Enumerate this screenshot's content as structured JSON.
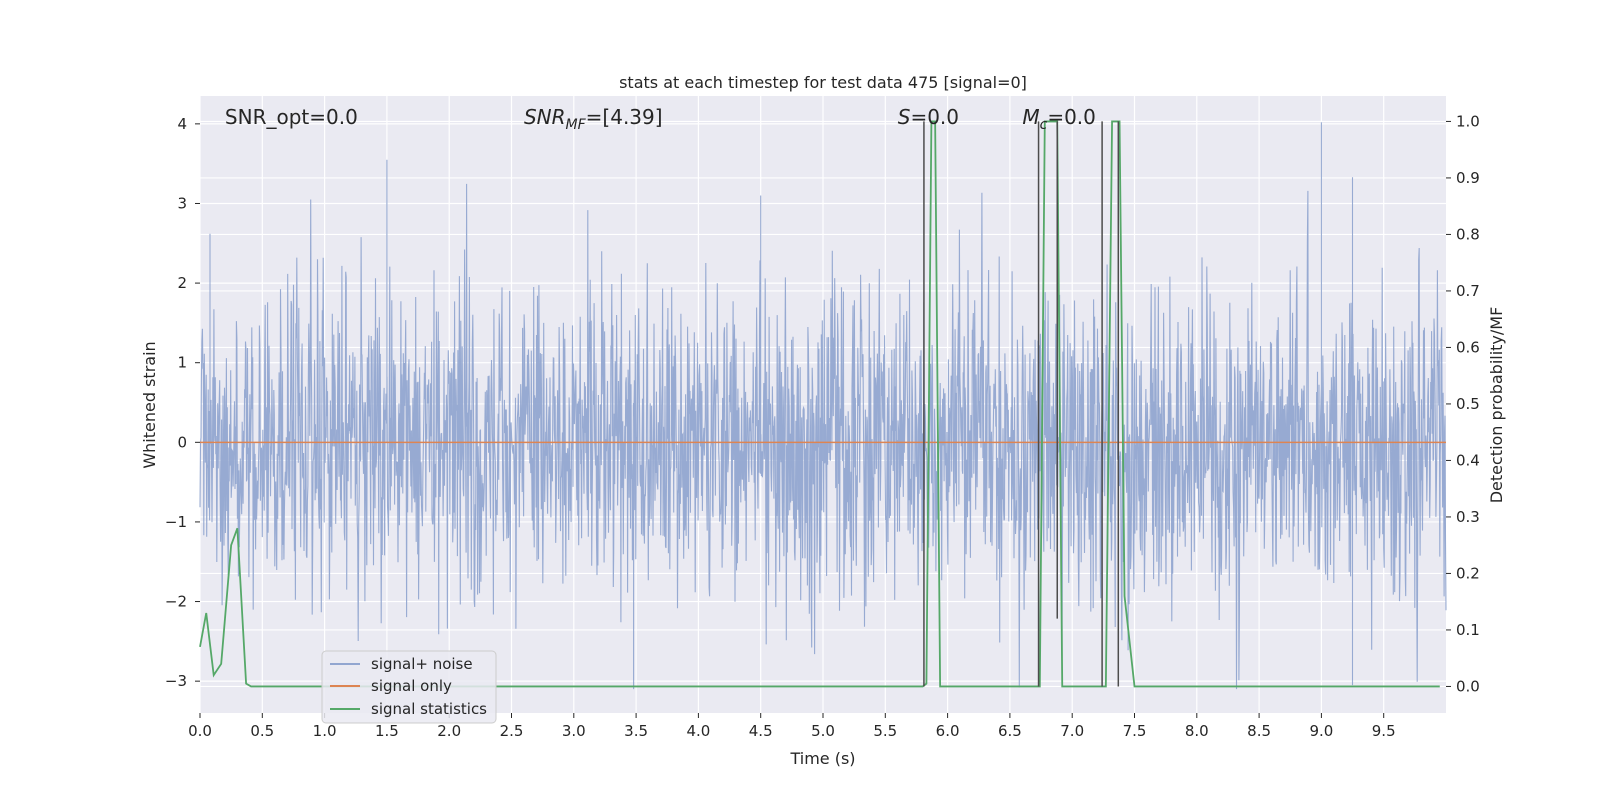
{
  "chart_data": {
    "type": "line",
    "title": "stats at each timestep for test data 475 [signal=0]",
    "xlabel": "Time (s)",
    "ylabel_left": "Whitened strain",
    "ylabel_right": "Detection probability/MF",
    "xlim": [
      0.0,
      10.0
    ],
    "ylim_left": [
      -3.4,
      4.35
    ],
    "ylim_right": [
      -0.047,
      1.045
    ],
    "xticks": [
      0.0,
      0.5,
      1.0,
      1.5,
      2.0,
      2.5,
      3.0,
      3.5,
      4.0,
      4.5,
      5.0,
      5.5,
      6.0,
      6.5,
      7.0,
      7.5,
      8.0,
      8.5,
      9.0,
      9.5
    ],
    "xtick_labels": [
      "0.0",
      "0.5",
      "1.0",
      "1.5",
      "2.0",
      "2.5",
      "3.0",
      "3.5",
      "4.0",
      "4.5",
      "5.0",
      "5.5",
      "6.0",
      "6.5",
      "7.0",
      "7.5",
      "8.0",
      "8.5",
      "9.0",
      "9.5"
    ],
    "yticks_left": [
      -3,
      -2,
      -1,
      0,
      1,
      2,
      3,
      4
    ],
    "ytick_labels_left": [
      "−3",
      "−2",
      "−1",
      "0",
      "1",
      "2",
      "3",
      "4"
    ],
    "yticks_right": [
      0.0,
      0.1,
      0.2,
      0.3,
      0.4,
      0.5,
      0.6,
      0.7,
      0.8,
      0.9,
      1.0
    ],
    "ytick_labels_right": [
      "0.0",
      "0.1",
      "0.2",
      "0.3",
      "0.4",
      "0.5",
      "0.6",
      "0.7",
      "0.8",
      "0.9",
      "1.0"
    ],
    "grid": true,
    "legend_position": "lower-left",
    "annotations": [
      {
        "prefix": "SNR_opt=0.0",
        "sub": "",
        "suffix": "",
        "x_anchor": 0.2
      },
      {
        "prefix": "SNR",
        "sub": "MF",
        "suffix": "=[4.39]",
        "x_anchor": 2.6,
        "italic": true
      },
      {
        "prefix": "S",
        "sub": "",
        "suffix": "=0.0",
        "x_anchor": 5.6,
        "italic": true
      },
      {
        "prefix": "M",
        "sub": "c",
        "suffix": "=0.0",
        "x_anchor": 6.6,
        "italic": true
      }
    ],
    "series": [
      {
        "name": "signal+ noise",
        "color": "#92a6d0",
        "axis": "left",
        "kind": "noise",
        "amplitude_range": [
          -3.1,
          4.02
        ],
        "notable_peaks": [
          [
            0.08,
            2.62
          ],
          [
            1.5,
            3.55
          ],
          [
            4.5,
            3.1
          ],
          [
            9.0,
            4.02
          ],
          [
            9.25,
            3.33
          ],
          [
            3.48,
            -3.1
          ],
          [
            9.25,
            -3.05
          ]
        ]
      },
      {
        "name": "signal only",
        "color": "#dd8452",
        "axis": "left",
        "x": [
          0.0,
          10.0
        ],
        "y": [
          0.0,
          0.0
        ]
      },
      {
        "name": "signal statistics",
        "color": "#55a868",
        "axis": "right",
        "x": [
          0.0,
          0.05,
          0.11,
          0.17,
          0.25,
          0.3,
          0.37,
          0.41,
          5.8,
          5.83,
          5.87,
          5.9,
          5.94,
          6.74,
          6.78,
          6.83,
          6.88,
          6.92,
          7.23,
          7.27,
          7.32,
          7.38,
          7.42,
          7.5,
          9.95
        ],
        "y": [
          0.07,
          0.13,
          0.02,
          0.04,
          0.25,
          0.28,
          0.005,
          0.0,
          0.0,
          0.005,
          1.0,
          1.0,
          0.0,
          0.0,
          1.0,
          1.0,
          1.0,
          0.0,
          0.0,
          0.0,
          1.0,
          1.0,
          0.16,
          0.0,
          0.0
        ]
      }
    ],
    "vertical_markers": {
      "color": "#4c4c4c",
      "axis": "right",
      "segments": [
        [
          5.81,
          0.0,
          1.0
        ],
        [
          6.73,
          0.0,
          1.0
        ],
        [
          6.88,
          0.12,
          1.0
        ],
        [
          7.24,
          0.0,
          1.0
        ],
        [
          7.37,
          0.0,
          1.0
        ]
      ]
    }
  }
}
